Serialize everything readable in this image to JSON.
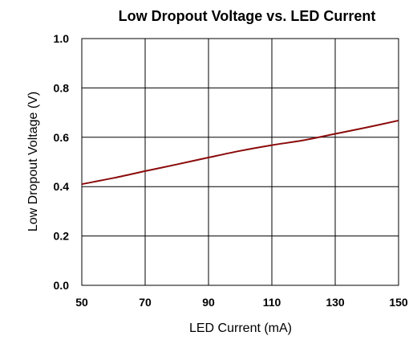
{
  "chart_data": {
    "type": "line",
    "title": "Low Dropout Voltage vs. LED Current",
    "xlabel": "LED Current (mA)",
    "ylabel": "Low Dropout Voltage (V)",
    "xlim": [
      50,
      150
    ],
    "ylim": [
      0.0,
      1.0
    ],
    "xticks": [
      "50",
      "70",
      "90",
      "110",
      "130",
      "150"
    ],
    "yticks": [
      "0.0",
      "0.2",
      "0.4",
      "0.6",
      "0.8",
      "1.0"
    ],
    "grid": true,
    "series_color": "#8b0a0a",
    "series": [
      {
        "x": [
          50,
          60,
          70,
          80,
          90,
          100,
          110,
          120,
          130,
          140,
          150
        ],
        "y": [
          0.41,
          0.435,
          0.463,
          0.49,
          0.518,
          0.545,
          0.568,
          0.588,
          0.614,
          0.64,
          0.668
        ]
      }
    ]
  }
}
